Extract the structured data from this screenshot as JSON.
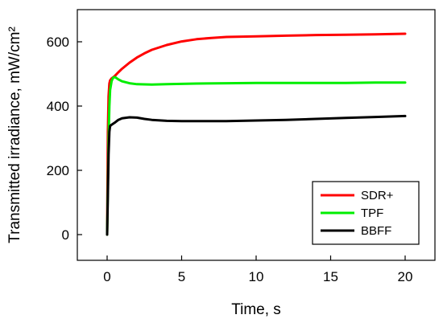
{
  "chart_data": {
    "type": "line",
    "title": "",
    "xlabel": "Time, s",
    "ylabel": "Transmitted irradiance, mW/cm²",
    "xlim": [
      -2,
      22
    ],
    "ylim": [
      -80,
      700
    ],
    "xticks": [
      0,
      5,
      10,
      15,
      20
    ],
    "yticks": [
      0,
      200,
      400,
      600
    ],
    "xtick_labels": [
      "0",
      "5",
      "10",
      "15",
      "20"
    ],
    "ytick_labels": [
      "0",
      "200",
      "400",
      "600"
    ],
    "grid": false,
    "legend_position": "bottom-right",
    "series": [
      {
        "name": "SDR+",
        "color": "#ff0000",
        "x": [
          0,
          0.05,
          0.1,
          0.15,
          0.2,
          0.3,
          0.5,
          0.75,
          1,
          1.5,
          2,
          2.5,
          3,
          4,
          5,
          6,
          7,
          8,
          9,
          10,
          12,
          14,
          16,
          18,
          20
        ],
        "y": [
          0,
          320,
          430,
          470,
          480,
          486,
          493,
          505,
          516,
          535,
          551,
          564,
          575,
          590,
          601,
          608,
          612,
          615,
          616,
          617,
          619,
          621,
          622,
          623,
          625
        ]
      },
      {
        "name": "TPF",
        "color": "#00ee00",
        "x": [
          0,
          0.05,
          0.1,
          0.15,
          0.2,
          0.3,
          0.4,
          0.5,
          0.6,
          0.75,
          1,
          1.5,
          2,
          3,
          4,
          5,
          6,
          8,
          10,
          12,
          14,
          16,
          18,
          20
        ],
        "y": [
          0,
          150,
          300,
          400,
          450,
          478,
          488,
          490,
          488,
          483,
          477,
          471,
          468,
          467,
          468,
          469,
          470,
          471,
          472,
          472,
          472,
          472,
          473,
          473
        ]
      },
      {
        "name": "BBFF",
        "color": "#000000",
        "x": [
          0,
          0.05,
          0.1,
          0.15,
          0.2,
          0.3,
          0.5,
          0.75,
          1,
          1.5,
          2,
          2.5,
          3,
          4,
          5,
          6,
          8,
          10,
          12,
          14,
          16,
          18,
          20
        ],
        "y": [
          0,
          120,
          250,
          320,
          338,
          342,
          348,
          357,
          362,
          365,
          364,
          360,
          357,
          354,
          353,
          353,
          353,
          355,
          357,
          360,
          363,
          366,
          369
        ]
      }
    ]
  }
}
